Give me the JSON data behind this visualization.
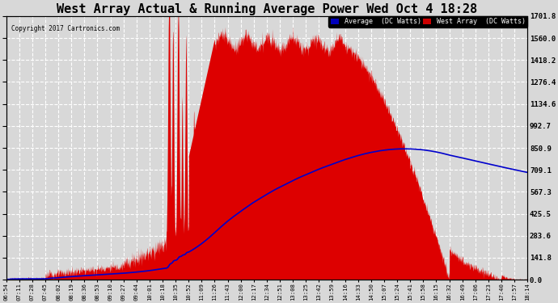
{
  "title": "West Array Actual & Running Average Power Wed Oct 4 18:28",
  "copyright": "Copyright 2017 Cartronics.com",
  "ylabel_right_ticks": [
    0.0,
    141.8,
    283.6,
    425.5,
    567.3,
    709.1,
    850.9,
    992.7,
    1134.6,
    1276.4,
    1418.2,
    1560.0,
    1701.8
  ],
  "y_max": 1701.8,
  "y_min": 0.0,
  "legend_label_avg": "Average  (DC Watts)",
  "legend_label_west": "West Array  (DC Watts)",
  "legend_avg_bg": "#0000bb",
  "legend_west_bg": "#cc0000",
  "title_fontsize": 11,
  "bg_color": "#d8d8d8",
  "plot_bg_color": "#d8d8d8",
  "red_fill_color": "#dd0000",
  "blue_line_color": "#0000cc",
  "grid_color": "#ffffff",
  "tick_color": "#000000",
  "x_tick_labels": [
    "06:54",
    "07:11",
    "07:28",
    "07:45",
    "08:02",
    "08:19",
    "08:36",
    "08:53",
    "09:10",
    "09:27",
    "09:44",
    "10:01",
    "10:18",
    "10:35",
    "10:52",
    "11:09",
    "11:26",
    "11:43",
    "12:00",
    "12:17",
    "12:34",
    "12:51",
    "13:08",
    "13:25",
    "13:42",
    "13:59",
    "14:16",
    "14:33",
    "14:50",
    "15:07",
    "15:24",
    "15:41",
    "15:58",
    "16:15",
    "16:32",
    "16:49",
    "17:06",
    "17:23",
    "17:40",
    "17:57",
    "18:14"
  ]
}
